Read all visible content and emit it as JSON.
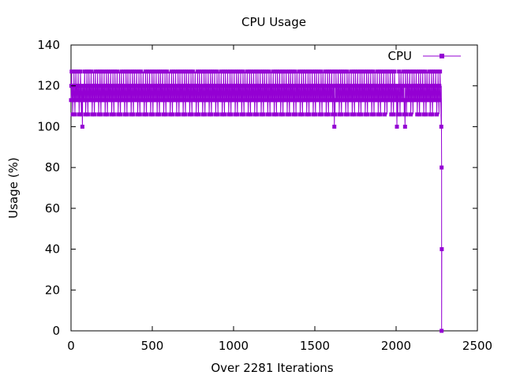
{
  "chart_data": {
    "type": "line",
    "title": "CPU Usage",
    "xlabel": "Over 2281 Iterations",
    "ylabel": "Usage (%)",
    "xlim": [
      0,
      2500
    ],
    "ylim": [
      0,
      140
    ],
    "xticks": [
      0,
      500,
      1000,
      1500,
      2000,
      2500
    ],
    "yticks": [
      0,
      20,
      40,
      60,
      80,
      100,
      120,
      140
    ],
    "grid": false,
    "legend_position": "top-right",
    "series": [
      {
        "name": "CPU",
        "color": "#9400d3",
        "marker": "filled-square",
        "pattern": [
          113,
          120,
          127,
          113,
          120,
          106,
          113,
          120,
          113,
          127,
          120,
          113,
          106,
          120,
          113,
          127,
          120,
          113,
          120,
          113
        ],
        "level_min": 106,
        "level_max": 127,
        "iterations": 2281,
        "dips": [
          {
            "x": 70,
            "y": 100
          },
          {
            "x": 1620,
            "y": 100
          },
          {
            "x": 2005,
            "y": 100
          },
          {
            "x": 2055,
            "y": 100
          },
          {
            "x": 2278,
            "y": 100
          }
        ],
        "tail": [
          {
            "x": 2278,
            "y": 120
          },
          {
            "x": 2280,
            "y": 80
          },
          {
            "x": 2280,
            "y": 0
          },
          {
            "x": 2281,
            "y": 40
          }
        ]
      }
    ]
  }
}
